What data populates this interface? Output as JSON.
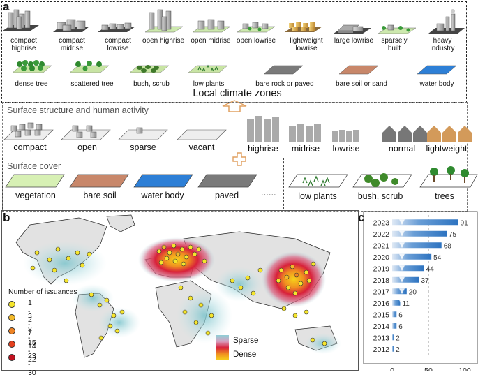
{
  "panel_a": {
    "letter": "a",
    "lcz_built": [
      {
        "label": "compact highrise"
      },
      {
        "label": "compact midrise"
      },
      {
        "label": "compact lowrise"
      },
      {
        "label": "open highrise"
      },
      {
        "label": "open midrise"
      },
      {
        "label": "open lowrise"
      },
      {
        "label": "lightweight lowrise"
      },
      {
        "label": "large lowrise"
      },
      {
        "label": "sparsely built"
      },
      {
        "label": "heavy industry"
      }
    ],
    "lcz_natural": [
      {
        "label": "dense tree"
      },
      {
        "label": "scattered tree"
      },
      {
        "label": "bush, scrub"
      },
      {
        "label": "low plants"
      },
      {
        "label": "bare rock or paved"
      },
      {
        "label": "bare soil or sand"
      },
      {
        "label": "water body"
      }
    ],
    "title": "Local climate zones",
    "structure_header": "Surface structure and human activity",
    "density": [
      "compact",
      "open",
      "sparse",
      "vacant"
    ],
    "heights": [
      "highrise",
      "midrise",
      "lowrise"
    ],
    "housing": [
      "normal",
      "lightweight"
    ],
    "cover_header": "Surface cover",
    "cover": [
      {
        "label": "vegetation",
        "color": "#d7f0b4"
      },
      {
        "label": "bare soil",
        "color": "#c8876a"
      },
      {
        "label": "water body",
        "color": "#2d7fd6"
      },
      {
        "label": "paved",
        "color": "#7a7a7a"
      }
    ],
    "cover_ellipsis": "......",
    "vegetation": [
      "low plants",
      "bush, scrub",
      "trees"
    ]
  },
  "panel_b": {
    "letter": "b",
    "legend_title": "Number of issuances",
    "legend_items": [
      {
        "label": "1 - 2",
        "color": "#f5e52c"
      },
      {
        "label": "3 - 7",
        "color": "#f2b92a"
      },
      {
        "label": "8 - 14",
        "color": "#ee8324"
      },
      {
        "label": "15 - 22",
        "color": "#e4401e"
      },
      {
        "label": "23 - 30",
        "color": "#c2101f"
      }
    ],
    "density_top": "Sparse",
    "density_bottom": "Dense"
  },
  "panel_c": {
    "letter": "c",
    "chart_data": {
      "type": "bar",
      "orientation": "horizontal",
      "categories": [
        "2023",
        "2022",
        "2021",
        "2020",
        "2019",
        "2018",
        "2017",
        "2016",
        "2015",
        "2014",
        "2013",
        "2012"
      ],
      "values": [
        91,
        75,
        68,
        54,
        44,
        37,
        20,
        11,
        6,
        6,
        2,
        2
      ],
      "value_labels": [
        "91",
        "75",
        "68",
        "54",
        "44",
        "37",
        "20",
        "11",
        "6",
        "6",
        "2",
        "2"
      ],
      "xlim": [
        0,
        100
      ],
      "xticks": [
        "0",
        "50",
        "100"
      ],
      "reference_line": 50,
      "bar_color": "#2d73c0"
    }
  }
}
